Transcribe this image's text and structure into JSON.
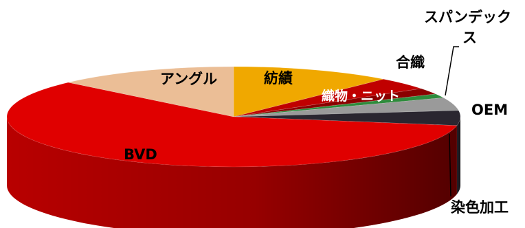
{
  "chart_data": {
    "type": "pie",
    "style": "3d",
    "title": "",
    "slices": [
      {
        "label": "紡績",
        "value": 11.5,
        "color": "#F0A800"
      },
      {
        "label": "織物・ニット",
        "value": 4.0,
        "color": "#C00000"
      },
      {
        "label": "合織",
        "value": 2.0,
        "color": "#8B0000"
      },
      {
        "label": "スパンデックス",
        "value": 1.3,
        "color": "#2E8B3C"
      },
      {
        "label": "OEM",
        "value": 4.2,
        "color": "#9A9A9A"
      },
      {
        "label": "染色加工",
        "value": 4.8,
        "color": "#2A2630"
      },
      {
        "label": "BVD",
        "value": 59.2,
        "color": "#E00000"
      },
      {
        "label": "アングル",
        "value": 13.0,
        "color": "#EBBE96"
      }
    ]
  }
}
